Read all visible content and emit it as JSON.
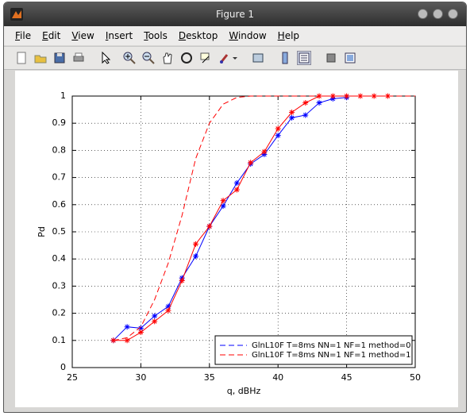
{
  "window": {
    "title": "Figure 1",
    "menu": [
      "File",
      "Edit",
      "View",
      "Insert",
      "Tools",
      "Desktop",
      "Window",
      "Help"
    ]
  },
  "chart_data": {
    "type": "line",
    "xlabel": "q, dBHz",
    "ylabel": "Pd",
    "x": [
      28,
      29,
      30,
      31,
      32,
      33,
      34,
      35,
      36,
      37,
      38,
      39,
      40,
      41,
      42,
      43,
      44,
      45,
      46,
      47,
      48,
      49,
      50
    ],
    "series": [
      {
        "name": "GlnL10F T=8ms NN=1 NF=1 method=0",
        "color": "#0000ff",
        "marker": "*",
        "line_style": "solid",
        "values": [
          0.1,
          0.15,
          0.145,
          0.19,
          0.225,
          0.33,
          0.41,
          0.52,
          0.595,
          0.68,
          0.75,
          0.785,
          0.855,
          0.92,
          0.93,
          0.975,
          0.99,
          0.995,
          null,
          null,
          null,
          null,
          null
        ]
      },
      {
        "name": "GlnL10F T=8ms NN=1 NF=1 method=1",
        "color": "#ff0000",
        "marker": "*",
        "line_style": "solid",
        "values": [
          0.1,
          0.1,
          0.13,
          0.17,
          0.21,
          0.32,
          0.455,
          0.52,
          0.615,
          0.655,
          0.755,
          0.795,
          0.88,
          0.94,
          0.975,
          1,
          1,
          1,
          1,
          1,
          1,
          null,
          null
        ]
      },
      {
        "color": "#ff0000",
        "line_style": "dashed",
        "values": [
          0.1,
          0.11,
          0.15,
          0.25,
          0.385,
          0.56,
          0.77,
          0.9,
          0.97,
          0.995,
          1,
          1,
          1,
          1,
          1,
          1,
          1,
          1,
          1,
          1,
          1,
          1,
          1
        ]
      }
    ],
    "xlim": [
      25,
      50
    ],
    "xticks": [
      25,
      30,
      35,
      40,
      45,
      50
    ],
    "ylim": [
      0,
      1
    ],
    "yticks": [
      0,
      0.1,
      0.2,
      0.3,
      0.4,
      0.5,
      0.6,
      0.7,
      0.8,
      0.9,
      1
    ],
    "grid": true,
    "legend": "lower right"
  }
}
